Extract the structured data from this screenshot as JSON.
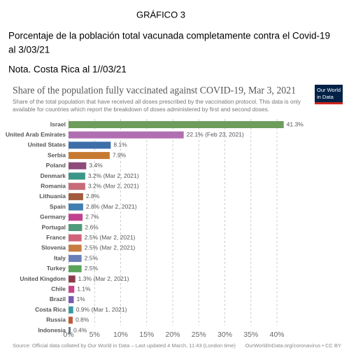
{
  "header": {
    "label": "GRÁFICO 3",
    "title_lines": [
      "Porcentaje de la población total vacunada completamente contra el Covid-19",
      "al 3/03/21"
    ],
    "note": "Nota. Costa Rica al 1//03/21"
  },
  "chart_data": {
    "type": "hbar",
    "title": "Share of the population fully vaccinated against COVID-19, Mar 3, 2021",
    "subtitle_lines": [
      "Share of the total population that have received all doses prescribed by the vaccination protocol. This data is only",
      "available for countries which report the breakdown of doses administered by first and second doses."
    ],
    "logo_lines": [
      "Our World",
      "in Data"
    ],
    "categories": [
      "Israel",
      "United Arab Emirates",
      "United States",
      "Serbia",
      "Poland",
      "Denmark",
      "Romania",
      "Lithuania",
      "Spain",
      "Germany",
      "Portugal",
      "France",
      "Slovenia",
      "Italy",
      "Turkey",
      "United Kingdom",
      "Chile",
      "Brazil",
      "Costa Rica",
      "Russia",
      "Indonesia"
    ],
    "values": [
      41.3,
      22.1,
      8.1,
      7.9,
      3.4,
      3.2,
      3.2,
      2.8,
      2.8,
      2.7,
      2.6,
      2.5,
      2.5,
      2.5,
      2.5,
      1.3,
      1.1,
      1,
      0.9,
      0.8,
      0.4
    ],
    "value_labels": [
      "41.3%",
      "22.1% (Feb 23, 2021)",
      "8.1%",
      "7.9%",
      "3.4%",
      "3.2% (Mar 2, 2021)",
      "3.2% (Mar 2, 2021)",
      "2.8%",
      "2.8% (Mar 2, 2021)",
      "2.7%",
      "2.6%",
      "2.5% (Mar 2, 2021)",
      "2.5% (Mar 2, 2021)",
      "2.5%",
      "2.5%",
      "1.3% (Mar 2, 2021)",
      "1.1%",
      "1%",
      "0.9% (Mar 1, 2021)",
      "0.8%",
      "0.4%"
    ],
    "colors": [
      "#6d9c5b",
      "#b06fb0",
      "#3d6ea8",
      "#c77a2f",
      "#8e4b7a",
      "#3a9688",
      "#c86a7a",
      "#a25b3c",
      "#3f7fb0",
      "#c0428f",
      "#4f9a7a",
      "#d0627a",
      "#c87c40",
      "#6a7fb8",
      "#5aa45a",
      "#8e3a4a",
      "#c8448a",
      "#7a5ab0",
      "#3a9aa0",
      "#c05a3a",
      "#6a7a8a"
    ],
    "xlim": [
      0,
      42
    ],
    "xticks": [
      {
        "value": 0,
        "label": "0%"
      },
      {
        "value": 5,
        "label": "5%"
      },
      {
        "value": 10,
        "label": "10%"
      },
      {
        "value": 15,
        "label": "15%"
      },
      {
        "value": 20,
        "label": "20%"
      },
      {
        "value": 25,
        "label": "25%"
      },
      {
        "value": 30,
        "label": "30%"
      },
      {
        "value": 35,
        "label": "35%"
      },
      {
        "value": 40,
        "label": "40%"
      }
    ],
    "grid": true,
    "source": "Source: Official data collated by Our World in Data – Last updated 4 March, 11:43 (London time)",
    "url": "OurWorldInData.org/coronavirus • CC BY"
  }
}
